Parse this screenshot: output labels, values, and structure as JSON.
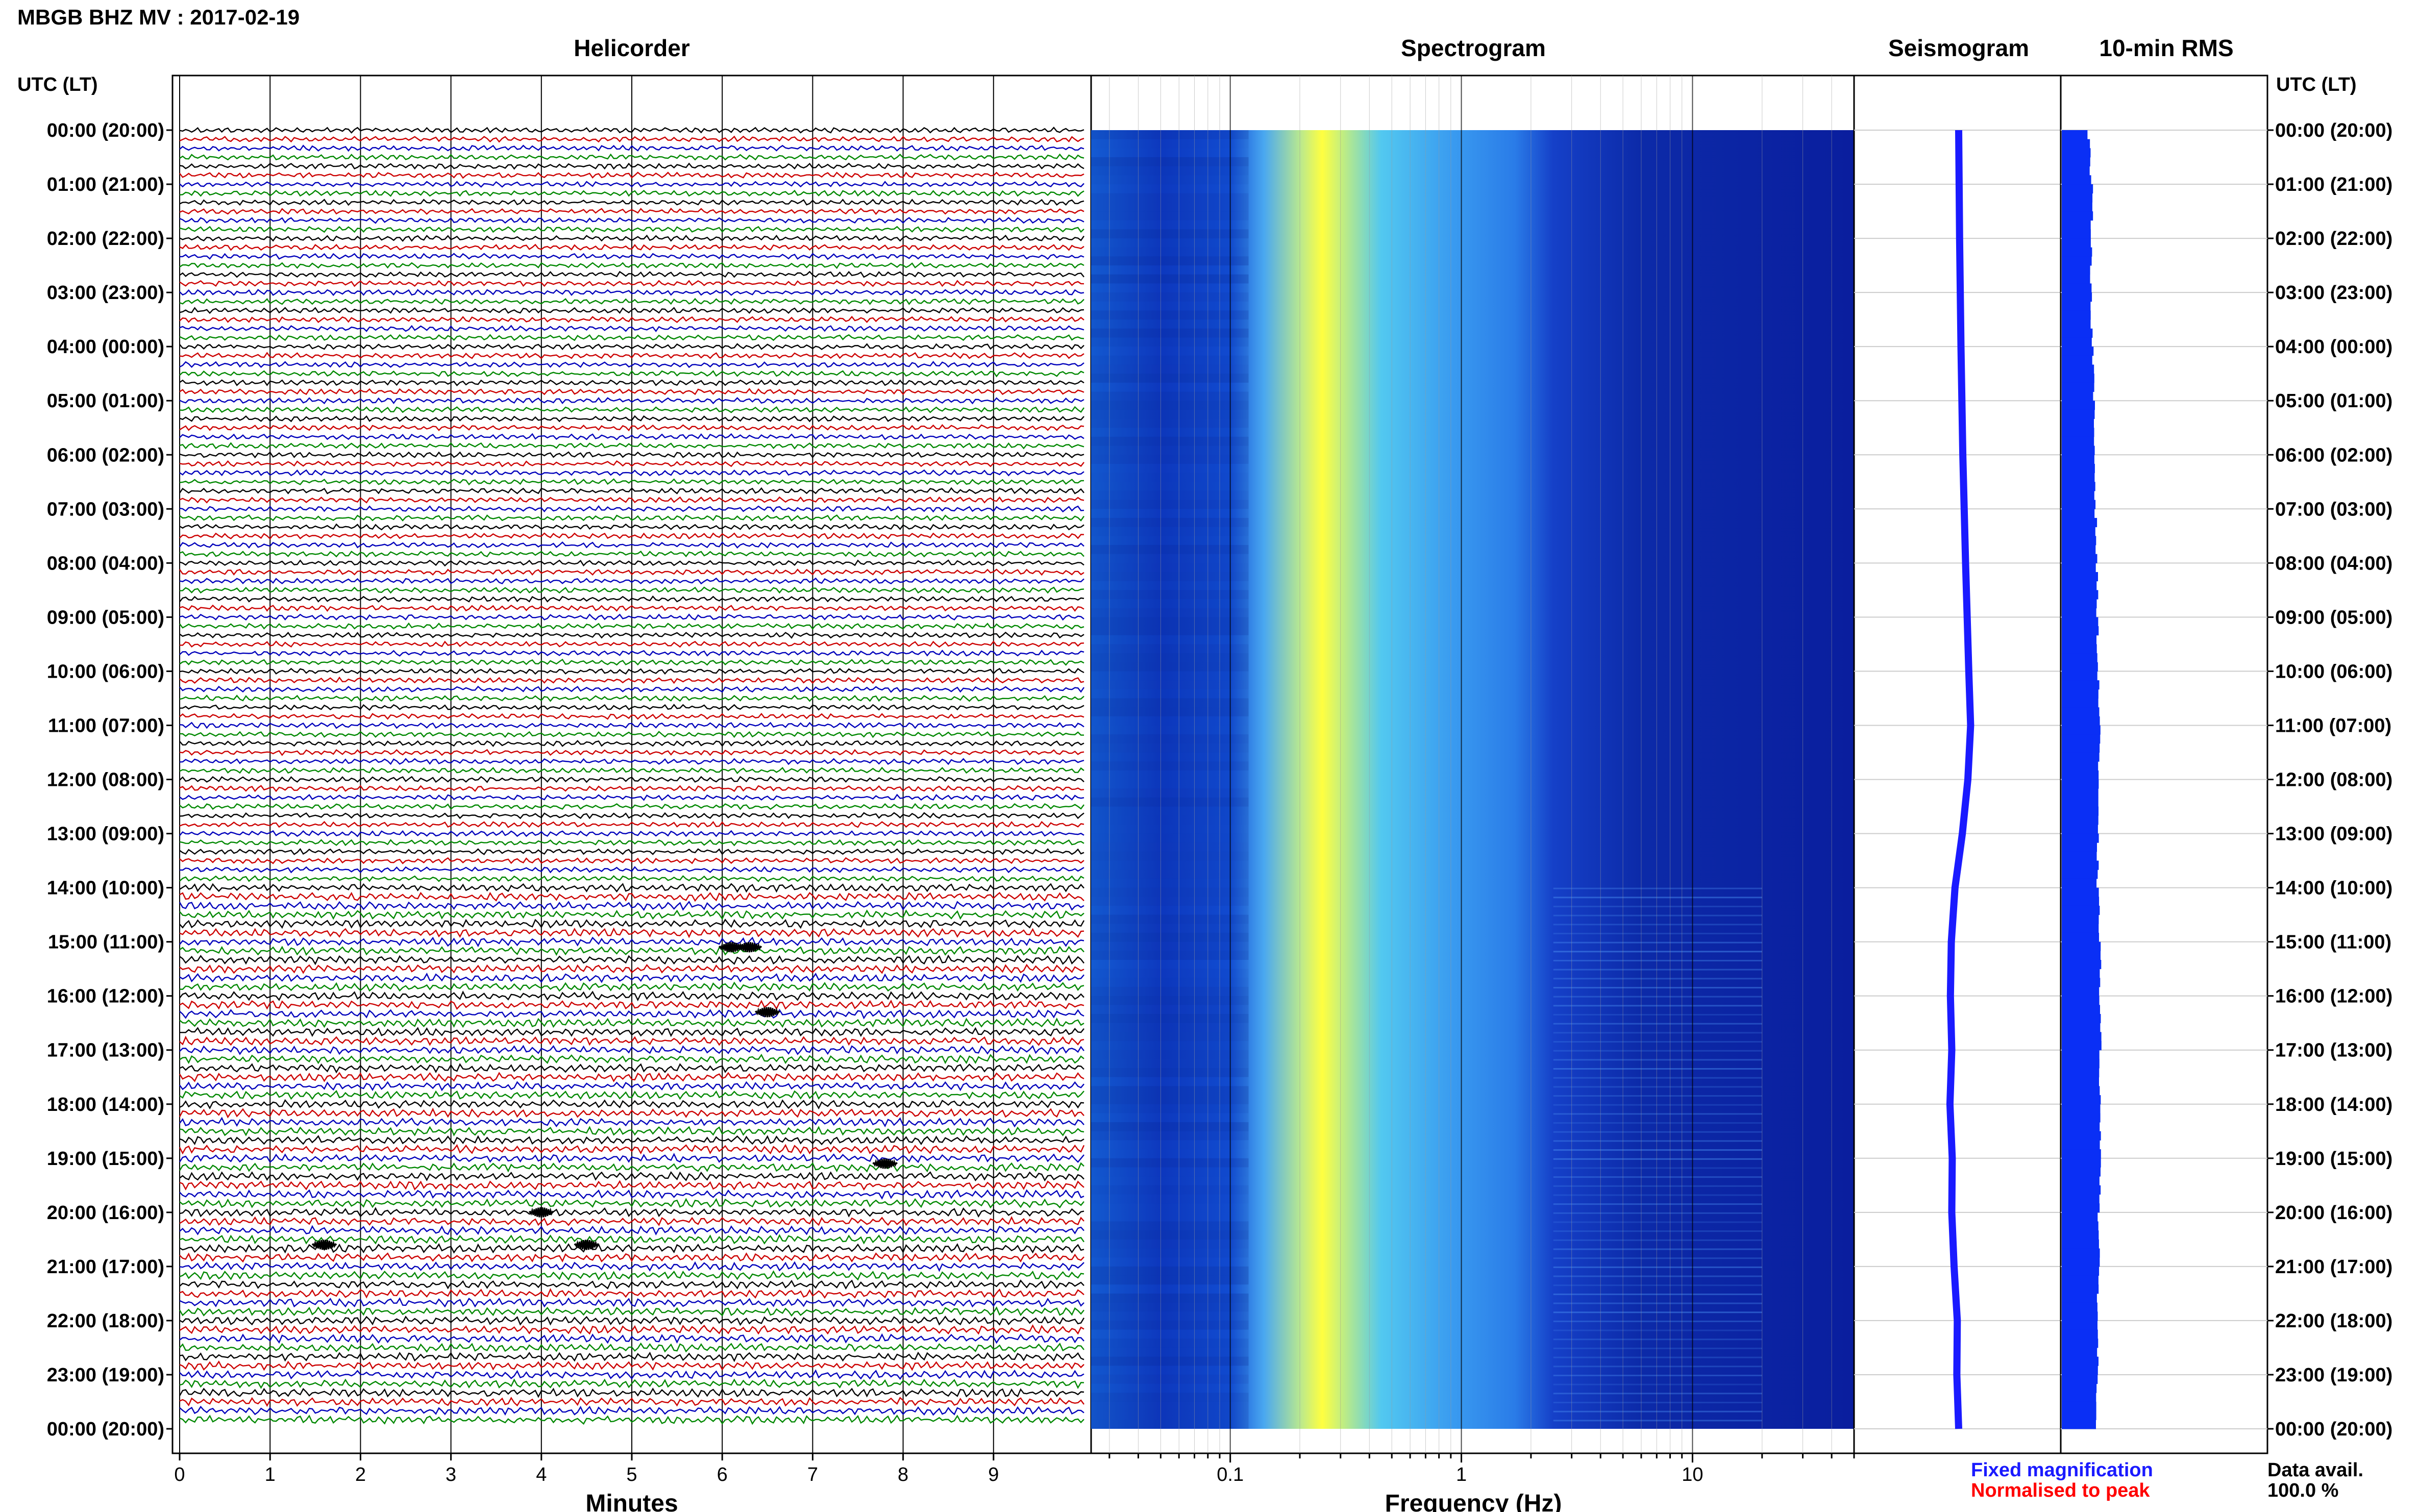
{
  "figure": {
    "title": "MBGB BHZ MV : 2017-02-19",
    "utc_label_left": "UTC (LT)",
    "utc_label_right": "UTC (LT)",
    "legend_fixed": "Fixed magnification",
    "legend_normalised": "Normalised to peak",
    "data_avail_label": "Data avail.",
    "data_avail_value": "100.0 %",
    "colors": {
      "fixed": "#1a1aff",
      "normalised": "#ff0000",
      "trace_cycle": [
        "#000000",
        "#cc0000",
        "#0000bb",
        "#008800"
      ],
      "spectro_low": "#0a1e9e",
      "spectro_high": "#ffff40",
      "rms_bar": "#0a2ff5"
    }
  },
  "chart_data": [
    {
      "type": "line",
      "name": "helicorder",
      "title": "Helicorder",
      "xlabel": "Minutes",
      "xlim": [
        0,
        10
      ],
      "x_ticks": [
        0,
        1,
        2,
        3,
        4,
        5,
        6,
        7,
        8,
        9
      ],
      "time_labels": [
        "00:00 (20:00)",
        "01:00 (21:00)",
        "02:00 (22:00)",
        "03:00 (23:00)",
        "04:00 (00:00)",
        "05:00 (01:00)",
        "06:00 (02:00)",
        "07:00 (03:00)",
        "08:00 (04:00)",
        "09:00 (05:00)",
        "10:00 (06:00)",
        "11:00 (07:00)",
        "12:00 (08:00)",
        "13:00 (09:00)",
        "14:00 (10:00)",
        "15:00 (11:00)",
        "16:00 (12:00)",
        "17:00 (13:00)",
        "18:00 (14:00)",
        "19:00 (15:00)",
        "20:00 (16:00)",
        "21:00 (17:00)",
        "22:00 (18:00)",
        "23:00 (19:00)",
        "00:00 (20:00)"
      ],
      "rows": 144,
      "minutes_per_row": 10,
      "events": [
        {
          "hour": 15.1,
          "minute": 6.1
        },
        {
          "hour": 15.1,
          "minute": 6.3
        },
        {
          "hour": 16.3,
          "minute": 6.5
        },
        {
          "hour": 19.1,
          "minute": 7.8
        },
        {
          "hour": 20.0,
          "minute": 4.0
        },
        {
          "hour": 20.6,
          "minute": 1.6
        },
        {
          "hour": 20.6,
          "minute": 4.5
        }
      ]
    },
    {
      "type": "heatmap",
      "name": "spectrogram",
      "title": "Spectrogram",
      "xlabel": "Frequency (Hz)",
      "xscale": "log",
      "xlim": [
        0.025,
        50
      ],
      "x_tick_labels": [
        {
          "value": 0.1,
          "label": "0.1"
        },
        {
          "value": 1,
          "label": "1"
        },
        {
          "value": 10,
          "label": "10"
        }
      ],
      "peak_frequency_hz": 0.25,
      "secondary_band_hz": [
        0.9,
        1.7
      ],
      "dark_above_hz": 2.5
    },
    {
      "type": "line",
      "name": "seismogram",
      "title": "Seismogram",
      "points": [
        {
          "hour": 0,
          "offset": 0.0
        },
        {
          "hour": 2,
          "offset": 0.2
        },
        {
          "hour": 4,
          "offset": 0.5
        },
        {
          "hour": 6,
          "offset": 0.9
        },
        {
          "hour": 8,
          "offset": 1.5
        },
        {
          "hour": 10,
          "offset": 2.2
        },
        {
          "hour": 11,
          "offset": 2.6
        },
        {
          "hour": 12,
          "offset": 2.0
        },
        {
          "hour": 13,
          "offset": 0.8
        },
        {
          "hour": 14,
          "offset": -0.8
        },
        {
          "hour": 15,
          "offset": -1.6
        },
        {
          "hour": 16,
          "offset": -1.8
        },
        {
          "hour": 17,
          "offset": -1.5
        },
        {
          "hour": 18,
          "offset": -1.9
        },
        {
          "hour": 19,
          "offset": -1.4
        },
        {
          "hour": 20,
          "offset": -1.5
        },
        {
          "hour": 21,
          "offset": -1.0
        },
        {
          "hour": 22,
          "offset": -0.3
        },
        {
          "hour": 23,
          "offset": -0.4
        },
        {
          "hour": 24,
          "offset": 0.0
        }
      ]
    },
    {
      "type": "bar",
      "name": "rms",
      "title": "10-min RMS",
      "interval_minutes": 10,
      "hourly_level": [
        {
          "hour": 0,
          "level": 0.55
        },
        {
          "hour": 1,
          "level": 0.62
        },
        {
          "hour": 2,
          "level": 0.62
        },
        {
          "hour": 3,
          "level": 0.6
        },
        {
          "hour": 4,
          "level": 0.64
        },
        {
          "hour": 5,
          "level": 0.66
        },
        {
          "hour": 6,
          "level": 0.68
        },
        {
          "hour": 7,
          "level": 0.7
        },
        {
          "hour": 8,
          "level": 0.72
        },
        {
          "hour": 9,
          "level": 0.74
        },
        {
          "hour": 10,
          "level": 0.74
        },
        {
          "hour": 11,
          "level": 0.8
        },
        {
          "hour": 12,
          "level": 0.74
        },
        {
          "hour": 13,
          "level": 0.74
        },
        {
          "hour": 14,
          "level": 0.74
        },
        {
          "hour": 15,
          "level": 0.8
        },
        {
          "hour": 16,
          "level": 0.78
        },
        {
          "hour": 17,
          "level": 0.8
        },
        {
          "hour": 18,
          "level": 0.78
        },
        {
          "hour": 19,
          "level": 0.82
        },
        {
          "hour": 20,
          "level": 0.76
        },
        {
          "hour": 21,
          "level": 0.76
        },
        {
          "hour": 22,
          "level": 0.74
        },
        {
          "hour": 23,
          "level": 0.74
        },
        {
          "hour": 24,
          "level": 0.72
        }
      ]
    }
  ]
}
